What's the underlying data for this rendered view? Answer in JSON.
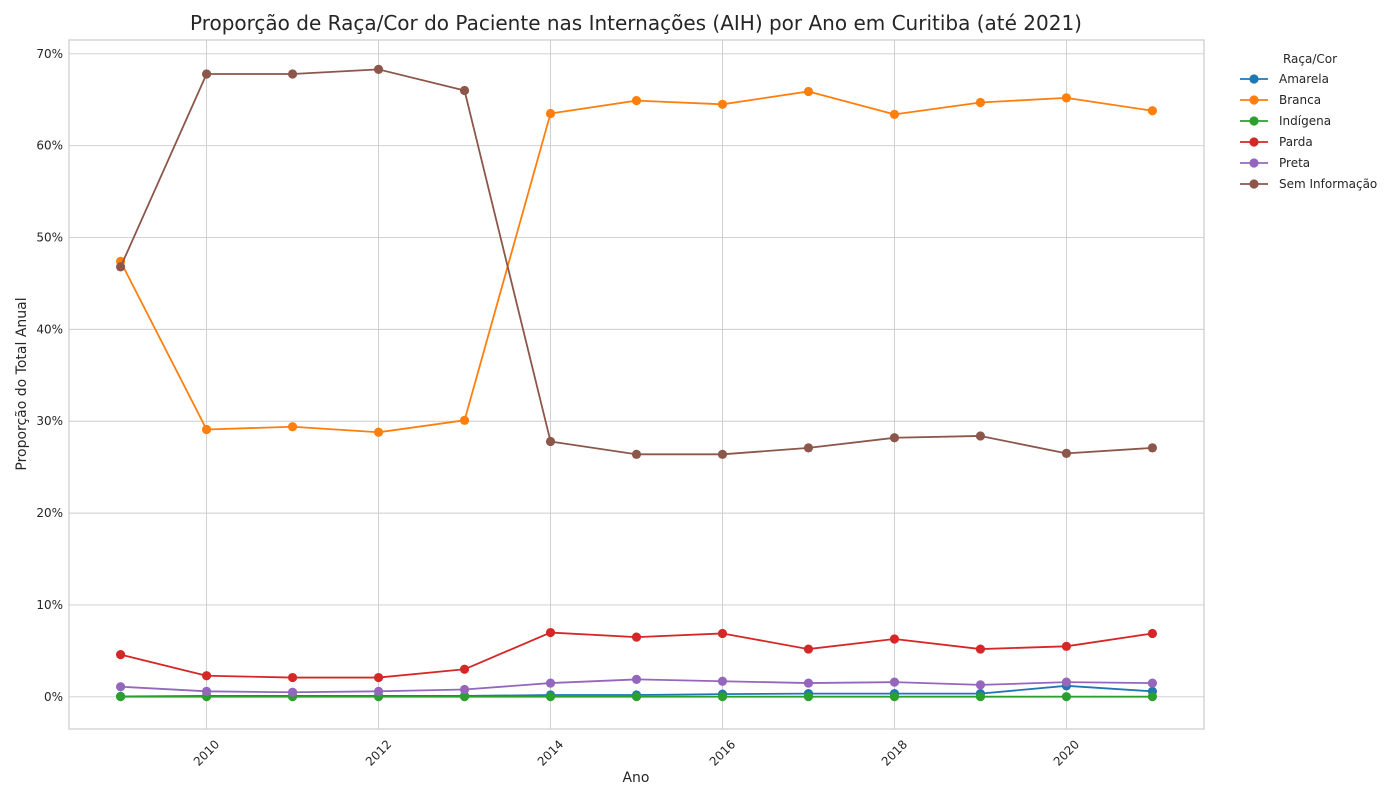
{
  "chart_data": {
    "type": "line",
    "title": "Proporção de Raça/Cor do Paciente nas Internações (AIH) por Ano em Curitiba (até 2021)",
    "xlabel": "Ano",
    "ylabel": "Proporção do Total Anual",
    "x": [
      2009,
      2010,
      2011,
      2012,
      2013,
      2014,
      2015,
      2016,
      2017,
      2018,
      2019,
      2020,
      2021
    ],
    "xlim": [
      2008.4,
      2021.6
    ],
    "ylim": [
      -3.5,
      71.5
    ],
    "x_ticks": [
      2010,
      2012,
      2014,
      2016,
      2018,
      2020
    ],
    "x_tick_labels": [
      "2010",
      "2012",
      "2014",
      "2016",
      "2018",
      "2020"
    ],
    "y_ticks": [
      0,
      10,
      20,
      30,
      40,
      50,
      60,
      70
    ],
    "y_tick_labels": [
      "0%",
      "10%",
      "20%",
      "30%",
      "40%",
      "50%",
      "60%",
      "70%"
    ],
    "grid": true,
    "legend": {
      "title": "Raça/Cor",
      "placement": "outside-top-right"
    },
    "series": [
      {
        "name": "Amarela",
        "color": "#1f77b4",
        "values": [
          0.05,
          0.1,
          0.1,
          0.1,
          0.1,
          0.2,
          0.2,
          0.3,
          0.35,
          0.35,
          0.35,
          1.2,
          0.6
        ]
      },
      {
        "name": "Branca",
        "color": "#ff7f0e",
        "values": [
          47.4,
          29.1,
          29.4,
          28.8,
          30.1,
          63.5,
          64.9,
          64.5,
          65.9,
          63.4,
          64.7,
          65.2,
          63.8
        ]
      },
      {
        "name": "Indígena",
        "color": "#2ca02c",
        "values": [
          0.02,
          0.02,
          0.02,
          0.02,
          0.02,
          0.02,
          0.02,
          0.02,
          0.02,
          0.02,
          0.02,
          0.02,
          0.02
        ]
      },
      {
        "name": "Parda",
        "color": "#d62728",
        "values": [
          4.6,
          2.3,
          2.1,
          2.1,
          3.0,
          7.0,
          6.5,
          6.9,
          5.2,
          6.3,
          5.2,
          5.5,
          6.9
        ]
      },
      {
        "name": "Preta",
        "color": "#9467bd",
        "values": [
          1.1,
          0.6,
          0.5,
          0.6,
          0.8,
          1.5,
          1.9,
          1.7,
          1.5,
          1.6,
          1.3,
          1.6,
          1.5
        ]
      },
      {
        "name": "Sem Informação",
        "color": "#8c564b",
        "values": [
          46.8,
          67.8,
          67.8,
          68.3,
          66.0,
          27.8,
          26.4,
          26.4,
          27.1,
          28.2,
          28.4,
          26.5,
          27.1
        ]
      }
    ]
  }
}
